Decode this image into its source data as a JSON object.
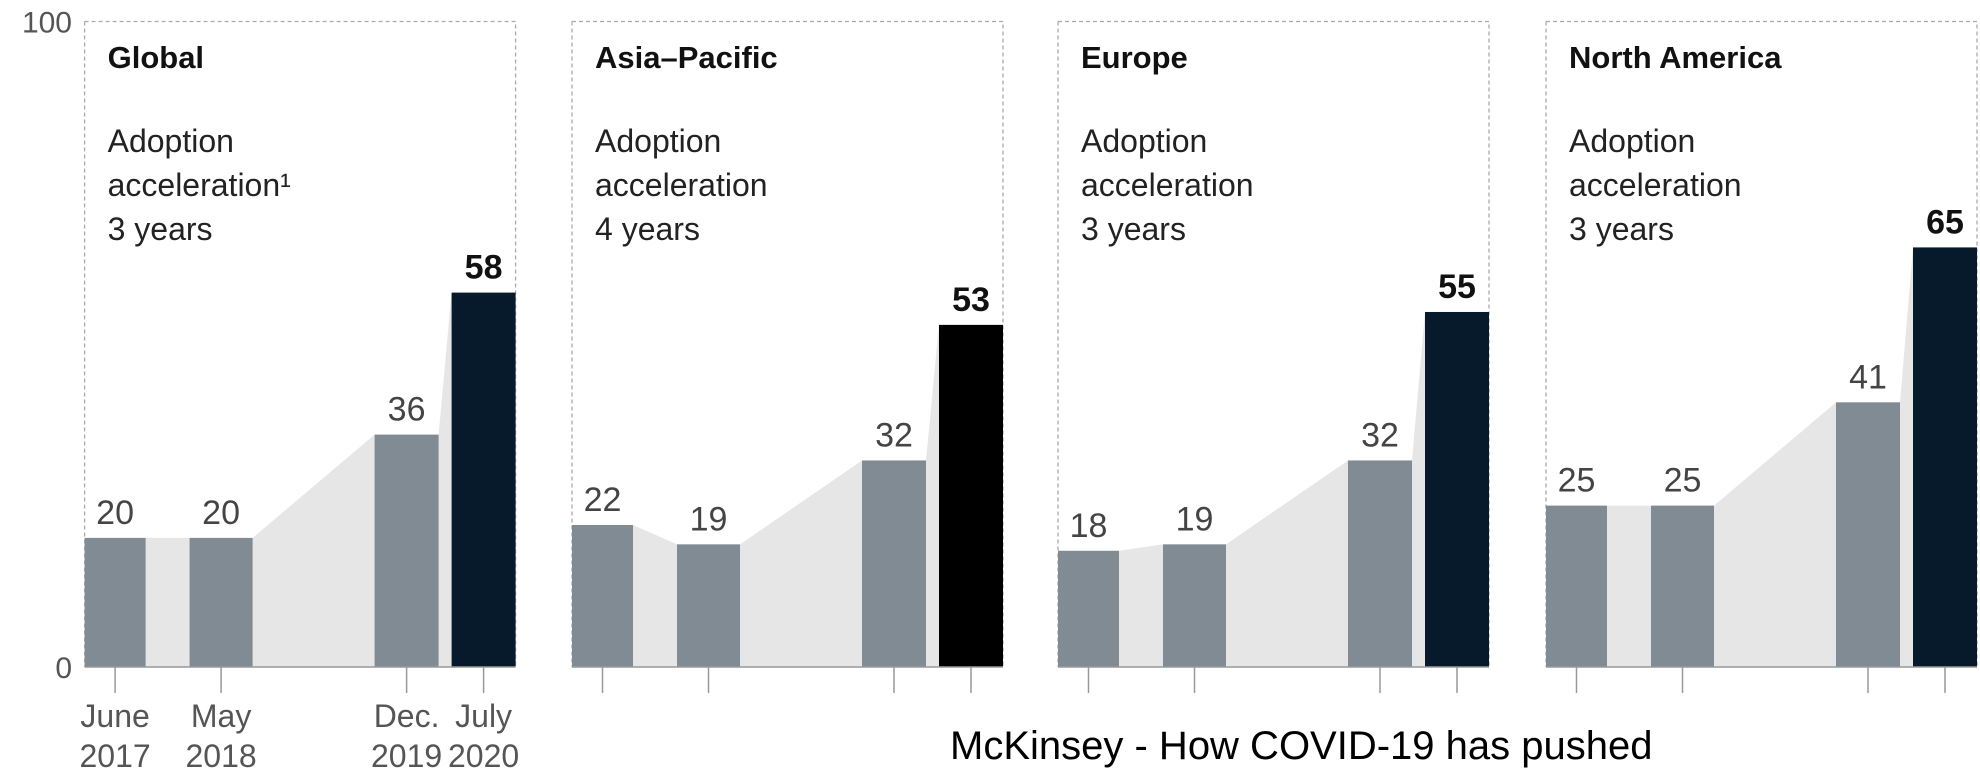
{
  "chart_data": [
    {
      "type": "bar",
      "title": "Global",
      "subtitle": "Adoption acceleration¹",
      "annotation": "3 years",
      "categories": [
        "June 2017",
        "May 2018",
        "Dec. 2019",
        "July 2020"
      ],
      "values": [
        20,
        20,
        36,
        58
      ],
      "colors": [
        "#808b93",
        "#808b93",
        "#808b93",
        "#061a2b"
      ],
      "ylim": [
        0,
        100
      ],
      "yticks": [
        0,
        100
      ]
    },
    {
      "type": "bar",
      "title": "Asia–Pacific",
      "subtitle": "Adoption acceleration",
      "annotation": "4 years",
      "categories": [
        null,
        null,
        null,
        null
      ],
      "values": [
        22,
        19,
        32,
        53
      ],
      "colors": [
        "#808b93",
        "#808b93",
        "#808b93",
        "#000000"
      ]
    },
    {
      "type": "bar",
      "title": "Europe",
      "subtitle": "Adoption acceleration",
      "annotation": "3 years",
      "categories": [
        null,
        null,
        null,
        null
      ],
      "values": [
        18,
        19,
        32,
        55
      ],
      "colors": [
        "#808b93",
        "#808b93",
        "#808b93",
        "#061a2b"
      ]
    },
    {
      "type": "bar",
      "title": "North America",
      "subtitle": "Adoption acceleration",
      "annotation": "3 years",
      "categories": [
        null,
        null,
        null,
        null
      ],
      "values": [
        25,
        25,
        41,
        65
      ],
      "colors": [
        "#808b93",
        "#808b93",
        "#808b93",
        "#061a2b"
      ]
    }
  ],
  "caption": "McKinsey - How COVID-19 has pushed"
}
